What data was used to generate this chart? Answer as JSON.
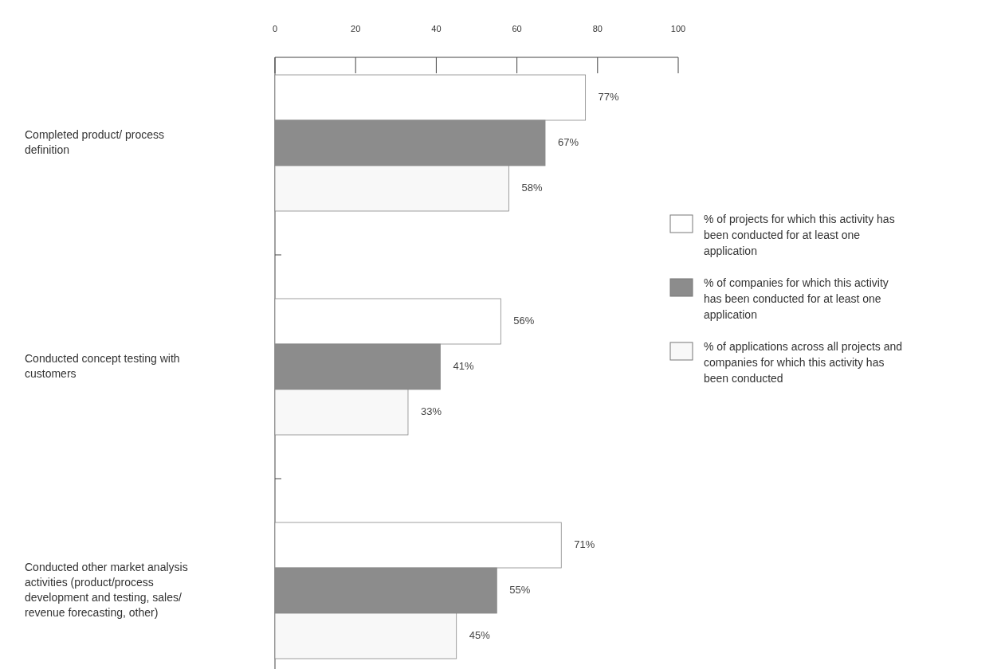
{
  "chart_data": {
    "type": "bar",
    "orientation": "horizontal",
    "categories": [
      "Completed product/ process definition",
      "Conducted concept testing with customers",
      "Conducted other market analysis activities (product/process development and testing, sales/ revenue forecasting, other)"
    ],
    "series": [
      {
        "name": "% of projects for which this activity has been conducted for at least one application",
        "color": "#ffffff",
        "values": [
          77,
          56,
          71
        ],
        "value_labels": [
          "77%",
          "56%",
          "71%"
        ]
      },
      {
        "name": "% of companies for which this activity has been conducted for at least one application",
        "color": "#8c8c8c",
        "values": [
          67,
          41,
          55
        ],
        "value_labels": [
          "67%",
          "41%",
          "55%"
        ]
      },
      {
        "name": "% of applications across all projects and companies for which this activity has been conducted",
        "color": "#f8f8f8",
        "values": [
          58,
          33,
          45
        ],
        "value_labels": [
          "58%",
          "33%",
          "45%"
        ]
      }
    ],
    "xlim": [
      0,
      100
    ],
    "xticks": [
      0,
      20,
      40,
      60,
      80,
      100
    ],
    "legend": "right",
    "grid": false
  }
}
